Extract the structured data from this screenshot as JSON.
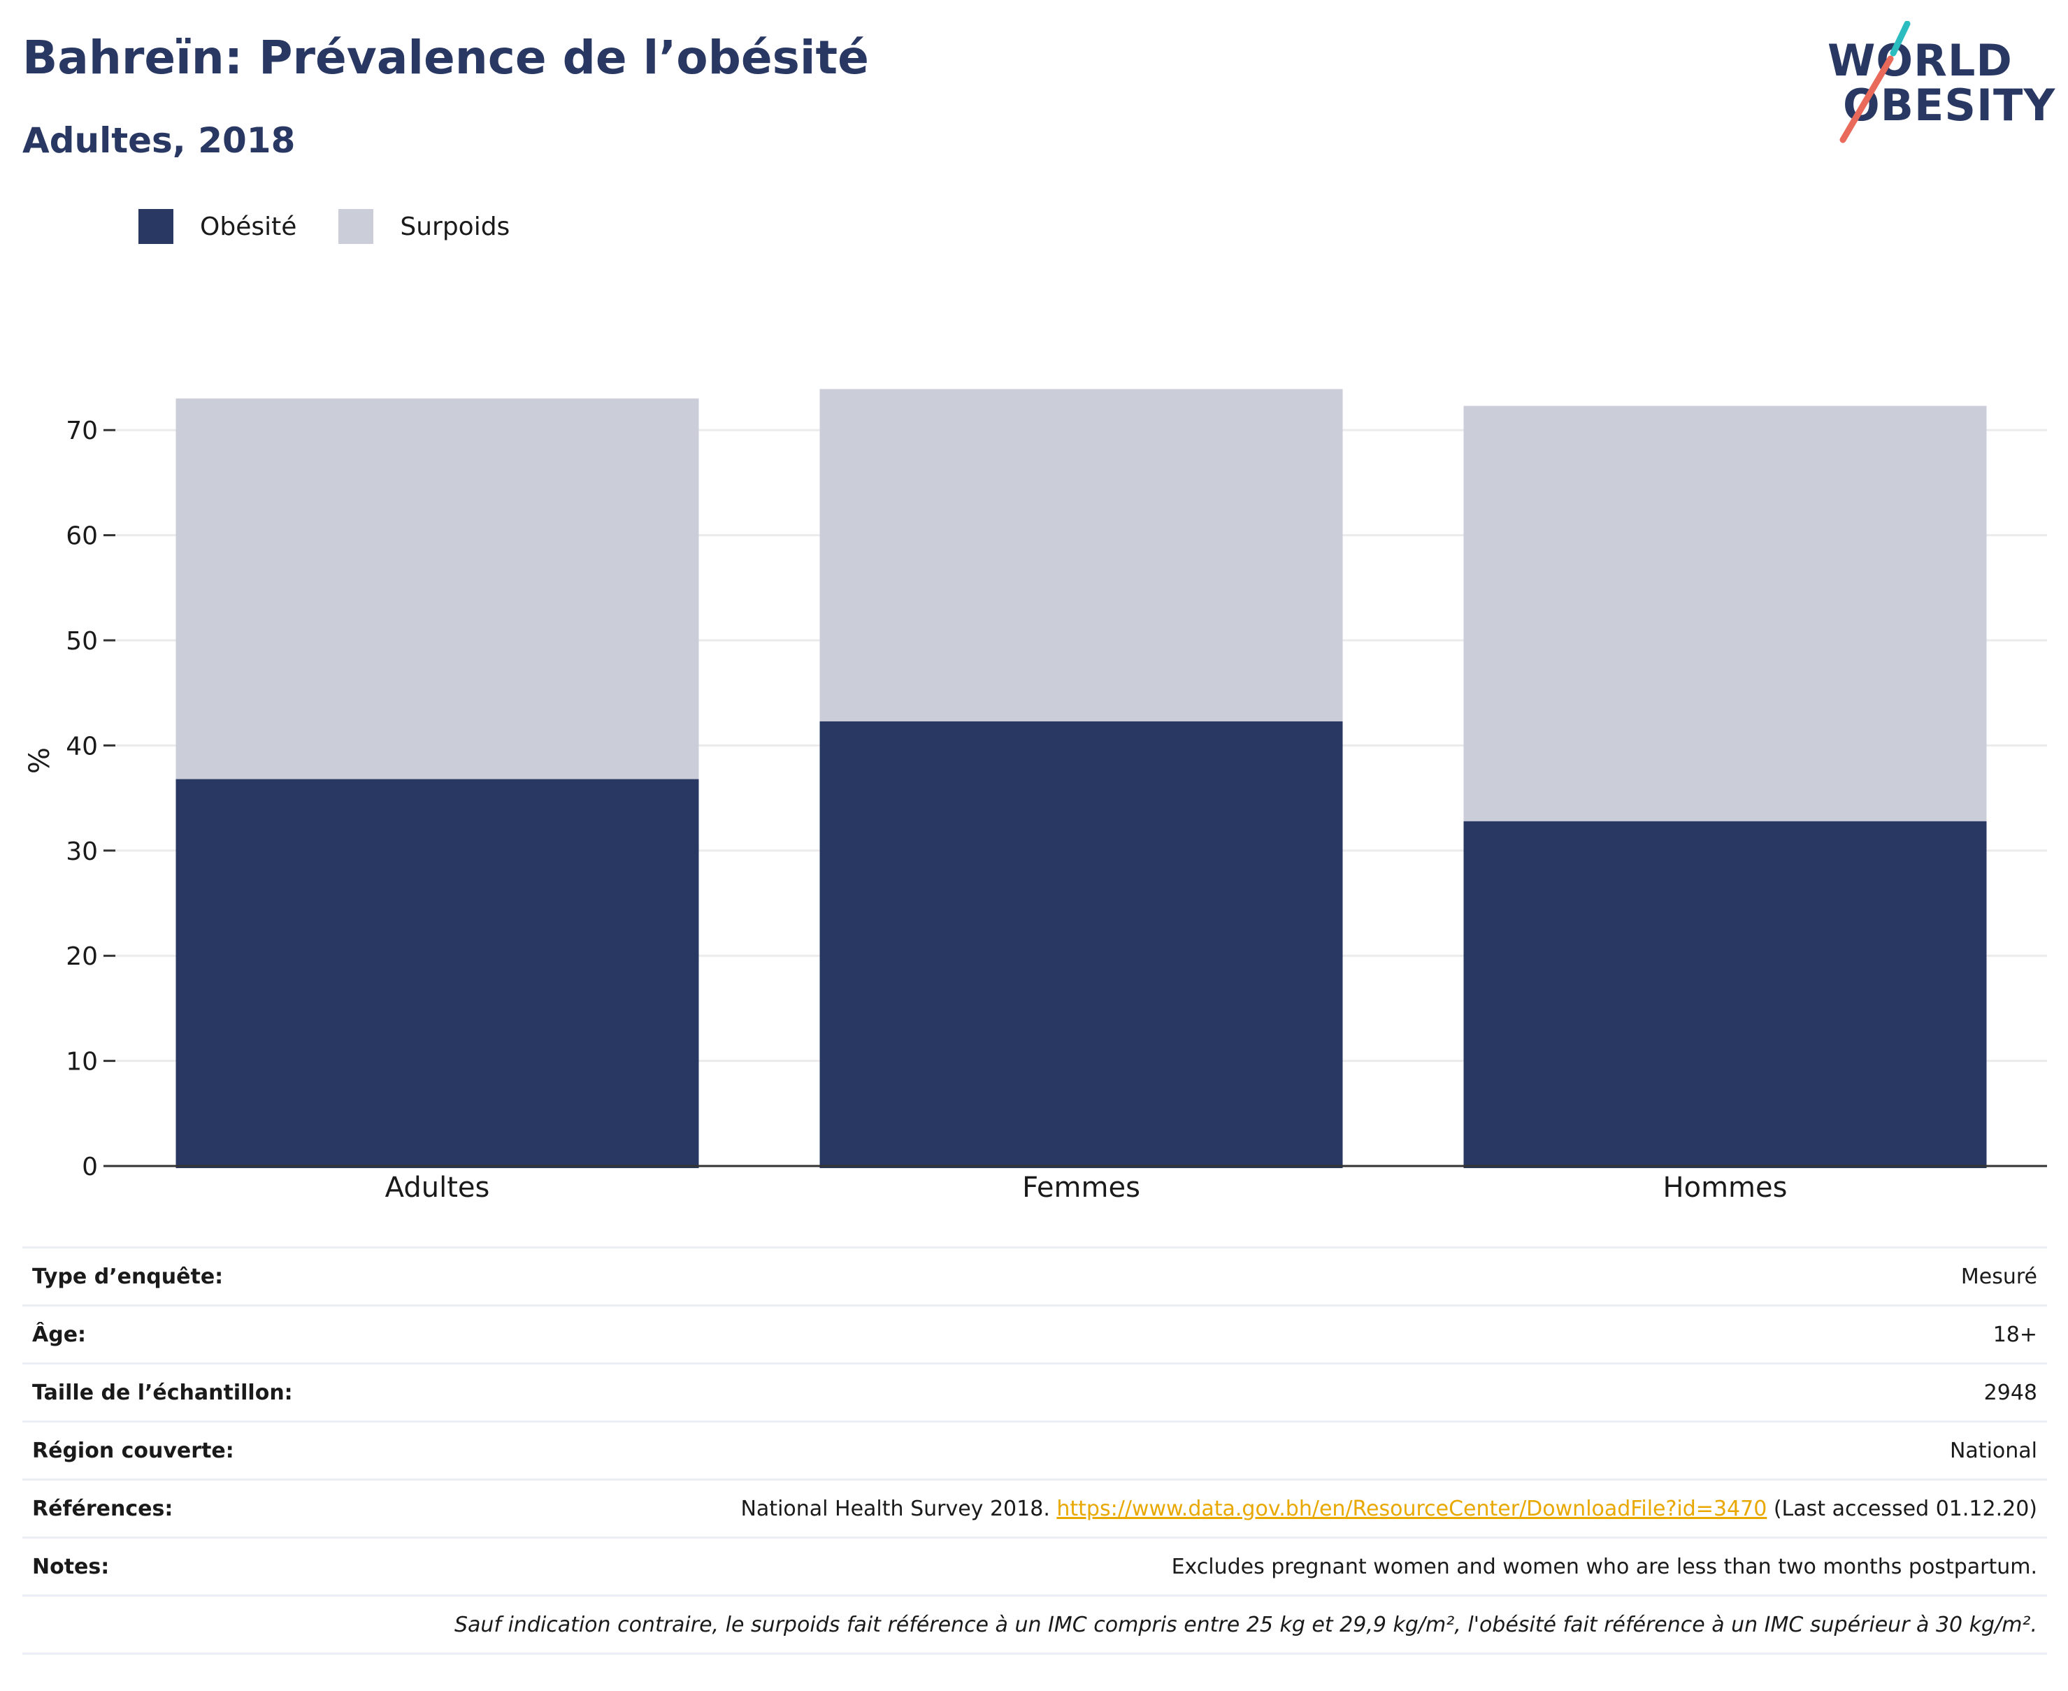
{
  "header": {
    "title": "Bahreïn: Prévalence de l’obésité",
    "subtitle": "Adultes, 2018"
  },
  "logo": {
    "line1": "WORLD",
    "line2": "OBESITY"
  },
  "colors": {
    "obesity": "#293863",
    "overweight": "#cbcdd8",
    "accent_teal": "#2bbcc0",
    "accent_coral": "#e96a5a",
    "link": "#e9a800"
  },
  "chart_data": {
    "type": "bar",
    "stacked": true,
    "categories": [
      "Adultes",
      "Femmes",
      "Hommes"
    ],
    "series": [
      {
        "name": "Obésité",
        "values": [
          36.8,
          42.3,
          32.8
        ]
      },
      {
        "name": "Surpoids",
        "values": [
          36.2,
          31.6,
          39.5
        ]
      }
    ],
    "ylabel": "%",
    "ylim": [
      0,
      80
    ],
    "yticks": [
      0,
      10,
      20,
      30,
      40,
      50,
      60,
      70
    ],
    "grid": true,
    "legend_position": "top-left"
  },
  "info": {
    "rows": [
      {
        "label": "Type d’enquête:",
        "value": "Mesuré"
      },
      {
        "label": "Âge:",
        "value": "18+"
      },
      {
        "label": "Taille de l’échantillon:",
        "value": "2948"
      },
      {
        "label": "Région couverte:",
        "value": "National"
      }
    ],
    "references": {
      "label": "Références:",
      "text_before": "National Health Survey 2018. ",
      "link": "https://www.data.gov.bh/en/ResourceCenter/DownloadFile?id=3470",
      "text_after": " (Last accessed 01.12.20)"
    },
    "notes": {
      "label": "Notes:",
      "value": "Excludes pregnant women and women who are less than two months postpartum."
    },
    "footnote": "Sauf indication contraire, le surpoids fait référence à un IMC compris entre 25 kg et 29,9 kg/m², l'obésité fait référence à un IMC supérieur à 30 kg/m²."
  }
}
